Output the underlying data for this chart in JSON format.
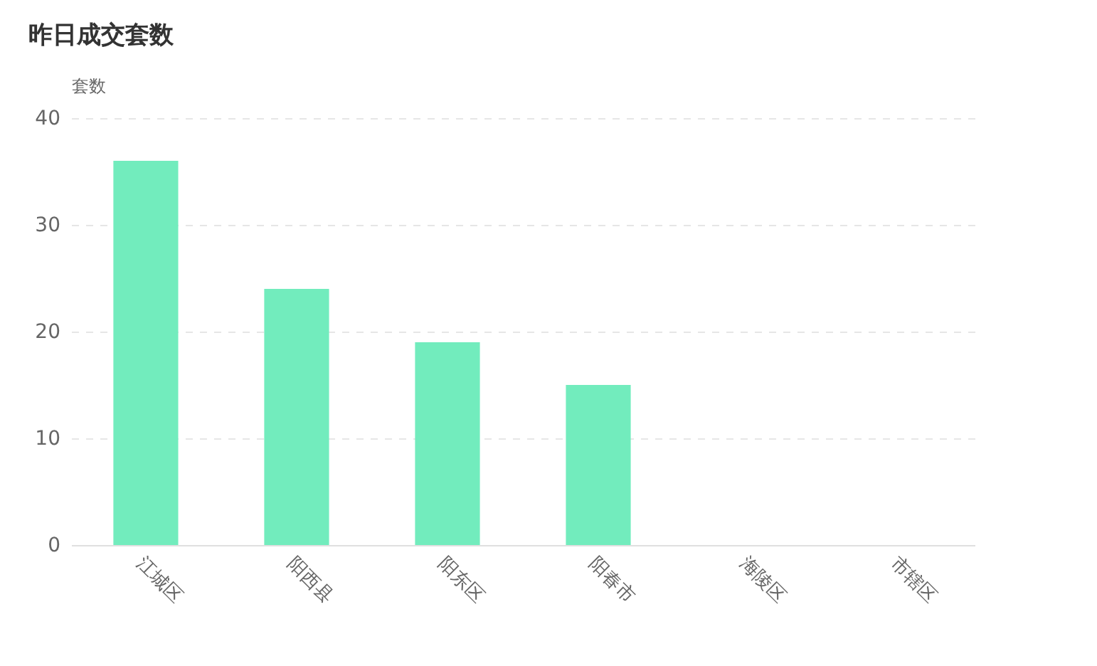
{
  "chart_data": {
    "type": "bar",
    "title": "昨日成交套数",
    "ylabel": "套数",
    "categories": [
      "江城区",
      "阳西县",
      "阳东区",
      "阳春市",
      "海陵区",
      "市辖区"
    ],
    "values": [
      36,
      24,
      19,
      15,
      0,
      0
    ],
    "color": "#72ecbd",
    "ylim": [
      0,
      40
    ],
    "yticks": [
      0,
      10,
      20,
      30,
      40
    ],
    "grid": "y"
  }
}
